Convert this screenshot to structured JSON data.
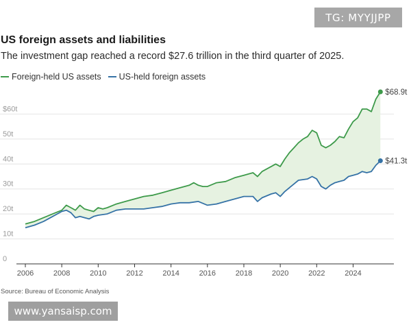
{
  "overlay": {
    "tag": "TG: MYYJJPP",
    "watermark": "www.yansaisp.com"
  },
  "chart_data": {
    "type": "line",
    "title": "US foreign assets and liabilities",
    "subtitle": "The investment gap reached a record $27.6 trillion in the third quarter of 2025.",
    "source": "Source: Bureau of Economic Analysis",
    "xlabel": "",
    "ylabel": "",
    "xlim": [
      2006,
      2025.6
    ],
    "ylim": [
      0,
      70
    ],
    "y_ticks": [
      {
        "value": 0,
        "label": "0"
      },
      {
        "value": 10,
        "label": "10t"
      },
      {
        "value": 20,
        "label": "20t"
      },
      {
        "value": 30,
        "label": "30t"
      },
      {
        "value": 40,
        "label": "40t"
      },
      {
        "value": 50,
        "label": "50t"
      },
      {
        "value": 60,
        "label": "$60t"
      }
    ],
    "x_ticks": [
      {
        "value": 2006,
        "label": "2006"
      },
      {
        "value": 2008,
        "label": "2008"
      },
      {
        "value": 2010,
        "label": "2010"
      },
      {
        "value": 2012,
        "label": "2012"
      },
      {
        "value": 2014,
        "label": "2014"
      },
      {
        "value": 2016,
        "label": "2016"
      },
      {
        "value": 2018,
        "label": "2018"
      },
      {
        "value": 2020,
        "label": "2020"
      },
      {
        "value": 2022,
        "label": "2022"
      },
      {
        "value": 2024,
        "label": "2024"
      }
    ],
    "grid": true,
    "legend_position": "top-left",
    "shaded_gap": true,
    "colors": {
      "liabilities": "#3d9a4a",
      "assets": "#3572a6",
      "gap_fill": "#e6f2e1",
      "grid": "#e4e4e4",
      "axis": "#333333"
    },
    "series": [
      {
        "key": "liabilities",
        "name": "Foreign-held US assets",
        "end_label": "$68.9t",
        "points": [
          [
            2006.0,
            16.0
          ],
          [
            2006.5,
            17.0
          ],
          [
            2007.0,
            18.5
          ],
          [
            2007.5,
            20.0
          ],
          [
            2008.0,
            21.5
          ],
          [
            2008.25,
            23.5
          ],
          [
            2008.5,
            22.5
          ],
          [
            2008.75,
            21.5
          ],
          [
            2009.0,
            23.5
          ],
          [
            2009.25,
            22.0
          ],
          [
            2009.5,
            21.5
          ],
          [
            2009.75,
            21.0
          ],
          [
            2010.0,
            22.5
          ],
          [
            2010.25,
            22.0
          ],
          [
            2010.5,
            22.5
          ],
          [
            2011.0,
            24.0
          ],
          [
            2011.5,
            25.0
          ],
          [
            2012.0,
            26.0
          ],
          [
            2012.5,
            27.0
          ],
          [
            2013.0,
            27.5
          ],
          [
            2013.5,
            28.5
          ],
          [
            2014.0,
            29.5
          ],
          [
            2014.5,
            30.5
          ],
          [
            2015.0,
            31.5
          ],
          [
            2015.25,
            32.5
          ],
          [
            2015.5,
            31.5
          ],
          [
            2015.75,
            31.0
          ],
          [
            2016.0,
            31.0
          ],
          [
            2016.5,
            32.5
          ],
          [
            2017.0,
            33.0
          ],
          [
            2017.5,
            34.5
          ],
          [
            2018.0,
            35.5
          ],
          [
            2018.5,
            36.5
          ],
          [
            2018.75,
            35.0
          ],
          [
            2019.0,
            37.0
          ],
          [
            2019.5,
            39.0
          ],
          [
            2019.75,
            40.0
          ],
          [
            2020.0,
            39.0
          ],
          [
            2020.25,
            42.0
          ],
          [
            2020.5,
            44.5
          ],
          [
            2020.75,
            46.5
          ],
          [
            2021.0,
            48.5
          ],
          [
            2021.25,
            50.0
          ],
          [
            2021.5,
            51.0
          ],
          [
            2021.75,
            53.5
          ],
          [
            2022.0,
            52.5
          ],
          [
            2022.25,
            47.5
          ],
          [
            2022.5,
            46.5
          ],
          [
            2022.75,
            47.5
          ],
          [
            2023.0,
            49.0
          ],
          [
            2023.25,
            51.0
          ],
          [
            2023.5,
            50.5
          ],
          [
            2023.75,
            54.0
          ],
          [
            2024.0,
            57.0
          ],
          [
            2024.25,
            58.5
          ],
          [
            2024.5,
            62.0
          ],
          [
            2024.75,
            62.0
          ],
          [
            2025.0,
            61.0
          ],
          [
            2025.25,
            66.0
          ],
          [
            2025.5,
            68.9
          ]
        ]
      },
      {
        "key": "assets",
        "name": "US-held foreign assets",
        "end_label": "$41.3t",
        "points": [
          [
            2006.0,
            14.5
          ],
          [
            2006.5,
            15.5
          ],
          [
            2007.0,
            17.0
          ],
          [
            2007.5,
            19.0
          ],
          [
            2008.0,
            21.0
          ],
          [
            2008.25,
            21.5
          ],
          [
            2008.5,
            20.5
          ],
          [
            2008.75,
            18.5
          ],
          [
            2009.0,
            19.0
          ],
          [
            2009.25,
            18.5
          ],
          [
            2009.5,
            18.0
          ],
          [
            2009.75,
            19.0
          ],
          [
            2010.0,
            19.5
          ],
          [
            2010.5,
            20.0
          ],
          [
            2011.0,
            21.5
          ],
          [
            2011.5,
            22.0
          ],
          [
            2012.0,
            22.0
          ],
          [
            2012.5,
            22.0
          ],
          [
            2013.0,
            22.5
          ],
          [
            2013.5,
            23.0
          ],
          [
            2014.0,
            24.0
          ],
          [
            2014.5,
            24.5
          ],
          [
            2015.0,
            24.5
          ],
          [
            2015.5,
            25.0
          ],
          [
            2016.0,
            23.5
          ],
          [
            2016.5,
            24.0
          ],
          [
            2017.0,
            25.0
          ],
          [
            2017.5,
            26.0
          ],
          [
            2018.0,
            27.0
          ],
          [
            2018.5,
            27.0
          ],
          [
            2018.75,
            25.0
          ],
          [
            2019.0,
            26.5
          ],
          [
            2019.5,
            28.0
          ],
          [
            2019.75,
            28.5
          ],
          [
            2020.0,
            27.0
          ],
          [
            2020.25,
            29.0
          ],
          [
            2020.5,
            30.5
          ],
          [
            2020.75,
            32.0
          ],
          [
            2021.0,
            33.5
          ],
          [
            2021.5,
            34.0
          ],
          [
            2021.75,
            35.0
          ],
          [
            2022.0,
            34.0
          ],
          [
            2022.25,
            31.0
          ],
          [
            2022.5,
            30.0
          ],
          [
            2022.75,
            31.5
          ],
          [
            2023.0,
            32.5
          ],
          [
            2023.25,
            33.0
          ],
          [
            2023.5,
            33.5
          ],
          [
            2023.75,
            35.0
          ],
          [
            2024.0,
            35.5
          ],
          [
            2024.25,
            36.0
          ],
          [
            2024.5,
            37.0
          ],
          [
            2024.75,
            36.5
          ],
          [
            2025.0,
            37.0
          ],
          [
            2025.25,
            39.5
          ],
          [
            2025.5,
            41.3
          ]
        ]
      }
    ]
  }
}
